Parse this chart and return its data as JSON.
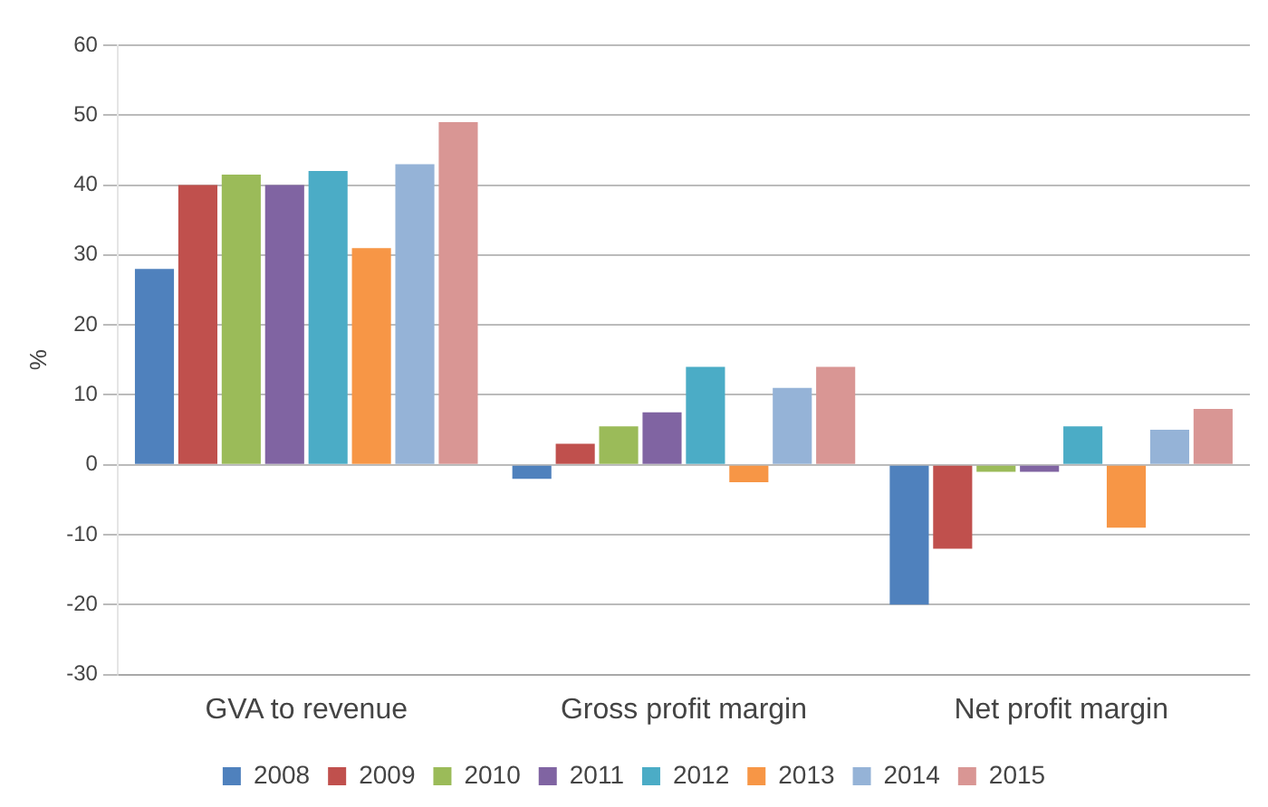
{
  "chart_data": {
    "type": "bar",
    "ylabel": "%",
    "categories": [
      "GVA to revenue",
      "Gross profit margin",
      "Net profit margin"
    ],
    "series": [
      {
        "name": "2008",
        "color": "#4f81bd",
        "values": [
          28,
          -2,
          -20
        ]
      },
      {
        "name": "2009",
        "color": "#c0504d",
        "values": [
          40,
          3,
          -12
        ]
      },
      {
        "name": "2010",
        "color": "#9bbb59",
        "values": [
          41.5,
          5.5,
          -1
        ]
      },
      {
        "name": "2011",
        "color": "#8064a2",
        "values": [
          40,
          7.5,
          -1
        ]
      },
      {
        "name": "2012",
        "color": "#4bacc6",
        "values": [
          42,
          14,
          5.5
        ]
      },
      {
        "name": "2013",
        "color": "#f79646",
        "values": [
          31,
          -2.5,
          -9
        ]
      },
      {
        "name": "2014",
        "color": "#95b3d7",
        "values": [
          43,
          11,
          5
        ]
      },
      {
        "name": "2015",
        "color": "#d99694",
        "values": [
          49,
          14,
          8
        ]
      }
    ],
    "ylim": [
      -30,
      60
    ],
    "yticks": [
      -30,
      -20,
      -10,
      0,
      10,
      20,
      30,
      40,
      50,
      60
    ],
    "grid": "y",
    "legend": "bottom"
  }
}
